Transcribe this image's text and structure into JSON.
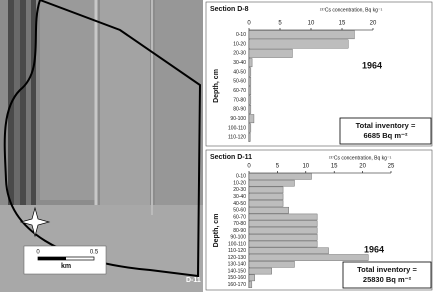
{
  "photo": {
    "scale_labels": [
      "0",
      "0.5"
    ],
    "scale_unit": "km",
    "site_label": "D-11"
  },
  "chart_data": [
    {
      "type": "hbar",
      "title": "Section D-8",
      "xlabel": "¹³⁷Cs concentration, Bq kg⁻¹",
      "ylabel": "Depth, cm",
      "categories": [
        "0-10",
        "10-20",
        "20-30",
        "30-40",
        "40-50",
        "50-60",
        "60-70",
        "70-80",
        "80-90",
        "90-100",
        "100-110",
        "110-120"
      ],
      "values": [
        17,
        16,
        7,
        0.5,
        0.3,
        0.3,
        0.3,
        0.3,
        0.3,
        0.8,
        0.3,
        0.2
      ],
      "color": "#bdbdbd",
      "xlim": [
        0,
        20
      ],
      "xticks": [
        0,
        5,
        10,
        15,
        20
      ],
      "annotation": "1964",
      "inventory": [
        "Total inventory =",
        "6685 Bq m⁻²"
      ]
    },
    {
      "type": "hbar",
      "title": "Section D-11",
      "xlabel": "¹³⁷Cs concentration, Bq kg⁻¹",
      "ylabel": "Depth, cm",
      "categories": [
        "0-10",
        "10-20",
        "20-30",
        "30-40",
        "40-50",
        "50-60",
        "60-70",
        "70-80",
        "80-90",
        "90-100",
        "100-110",
        "110-120",
        "120-130",
        "130-140",
        "140-150",
        "150-160",
        "160-170"
      ],
      "values": [
        11,
        8,
        6,
        6,
        6,
        7,
        12,
        12,
        12,
        12,
        12,
        14,
        21,
        8,
        4,
        1,
        0.5
      ],
      "color": "#bdbdbd",
      "xlim": [
        0,
        25
      ],
      "xticks": [
        0,
        5,
        10,
        15,
        20,
        25
      ],
      "annotation": "1964",
      "inventory": [
        "Total inventory =",
        "25830 Bq m⁻²"
      ]
    }
  ]
}
